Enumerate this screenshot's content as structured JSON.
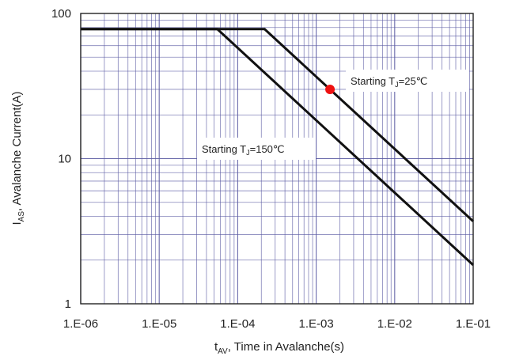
{
  "chart_data": {
    "type": "line",
    "title": "",
    "xscale": "log",
    "yscale": "log",
    "xlim": [
      1e-06,
      0.1
    ],
    "ylim": [
      1,
      100
    ],
    "grid": true,
    "x_ticks": [
      {
        "value": 1e-06,
        "label": "1.E-06"
      },
      {
        "value": 1e-05,
        "label": "1.E-05"
      },
      {
        "value": 0.0001,
        "label": "1.E-04"
      },
      {
        "value": 0.001,
        "label": "1.E-03"
      },
      {
        "value": 0.01,
        "label": "1.E-02"
      },
      {
        "value": 0.1,
        "label": "1.E-01"
      }
    ],
    "y_ticks": [
      {
        "value": 1,
        "label": "1"
      },
      {
        "value": 10,
        "label": "10"
      },
      {
        "value": 100,
        "label": "100"
      }
    ],
    "xlabel": {
      "main": "t",
      "sub": "AV",
      "rest": ", Time in Avalanche(s)"
    },
    "ylabel": {
      "main": "I",
      "sub": "AS",
      "rest": ", Avalanche Current(A)"
    },
    "series": [
      {
        "label_parts": {
          "pre": "Starting T",
          "sub": "J",
          "post": "=25℃"
        },
        "points": [
          [
            1e-06,
            78
          ],
          [
            0.00022,
            78
          ],
          [
            0.1,
            3.7
          ]
        ]
      },
      {
        "label_parts": {
          "pre": "Starting T",
          "sub": "J",
          "post": "=150℃"
        },
        "points": [
          [
            1e-06,
            78
          ],
          [
            5.5e-05,
            78
          ],
          [
            0.1,
            1.85
          ]
        ]
      }
    ],
    "marker": {
      "x": 0.0015,
      "y": 30,
      "color": "#ee1111"
    },
    "colors": {
      "line": "#111111",
      "grid": "#5b5ba3",
      "frame": "#222222"
    }
  }
}
